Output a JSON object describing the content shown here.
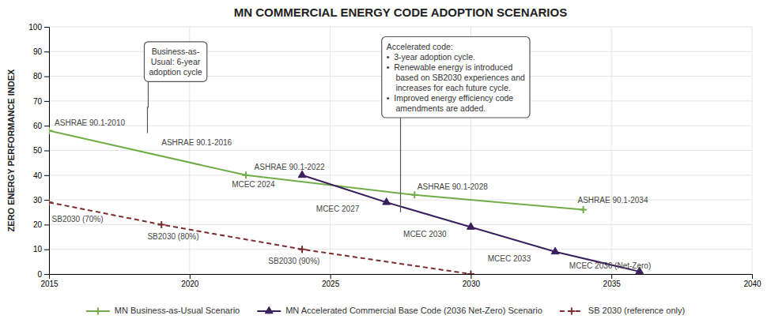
{
  "chart_data": {
    "type": "line",
    "title": "MN COMMERCIAL ENERGY CODE ADOPTION SCENARIOS",
    "y_label": "ZERO ENERGY PERFORMANCE INDEX",
    "xlim": [
      2015,
      2040
    ],
    "ylim": [
      0,
      100
    ],
    "xticks": [
      2015,
      2020,
      2025,
      2030,
      2035,
      2040
    ],
    "yticks": [
      0,
      10,
      20,
      30,
      40,
      50,
      60,
      70,
      80,
      90,
      100
    ],
    "grid": true,
    "legend": "bottom",
    "series": [
      {
        "name": "MN Business-as-Usual Scenario",
        "color": "#70AD47",
        "marker": "plus",
        "line_style": "solid",
        "x": [
          2015,
          2022,
          2028,
          2034
        ],
        "values": [
          58,
          40,
          32,
          26
        ]
      },
      {
        "name": "MN Accelerated Commercial Base Code (2036 Net-Zero) Scenario",
        "color": "#3B1F5E",
        "marker": "triangle",
        "line_style": "solid",
        "x": [
          2024,
          2027,
          2030,
          2033,
          2036
        ],
        "values": [
          40,
          29,
          19,
          9,
          1
        ]
      },
      {
        "name": "SB 2030 (reference only)",
        "color": "#7B2C2C",
        "marker": "plus",
        "line_style": "dashed",
        "x": [
          2015,
          2019,
          2024,
          2030
        ],
        "values": [
          29,
          20,
          10,
          0
        ]
      }
    ],
    "annotations": [
      {
        "text": "ASHRAE 90.1-2010",
        "x": 2015.2,
        "y": 61
      },
      {
        "text": "ASHRAE 90.1-2016",
        "x": 2019.0,
        "y": 53
      },
      {
        "text": "ASHRAE 90.1-2022",
        "x": 2022.3,
        "y": 43
      },
      {
        "text": "ASHRAE 90.1-2028",
        "x": 2028.1,
        "y": 35
      },
      {
        "text": "ASHRAE 90.1-2034",
        "x": 2033.8,
        "y": 29.5
      },
      {
        "text": "MCEC 2024",
        "x": 2021.5,
        "y": 36
      },
      {
        "text": "MCEC 2027",
        "x": 2024.5,
        "y": 26
      },
      {
        "text": "MCEC 2030",
        "x": 2027.6,
        "y": 16
      },
      {
        "text": "MCEC 2033",
        "x": 2030.6,
        "y": 6
      },
      {
        "text": "MCEC 2036 (Net-Zero)",
        "x": 2033.5,
        "y": 3
      },
      {
        "text": "SB2030 (70%)",
        "x": 2015.1,
        "y": 22
      },
      {
        "text": "SB2030 (80%)",
        "x": 2018.5,
        "y": 15
      },
      {
        "text": "SB2030 (90%)",
        "x": 2022.8,
        "y": 5
      },
      {
        "text": "Business-as-\nUsual: 6-year\nadoption cycle",
        "x": 2019.5,
        "y": 94,
        "point": [
          2018.5,
          57
        ],
        "align": "center"
      },
      {
        "text": "Accelerated code:\n•  3-year adoption cycle.\n•  Renewable energy is introduced\n    based on SB2030 experiences and\n    increases for each future cycle.\n•  Improved energy efficiency code\n    amendments are added.",
        "x": 2027.0,
        "y": 96,
        "point": [
          2027.5,
          25
        ],
        "align": "left"
      }
    ]
  }
}
